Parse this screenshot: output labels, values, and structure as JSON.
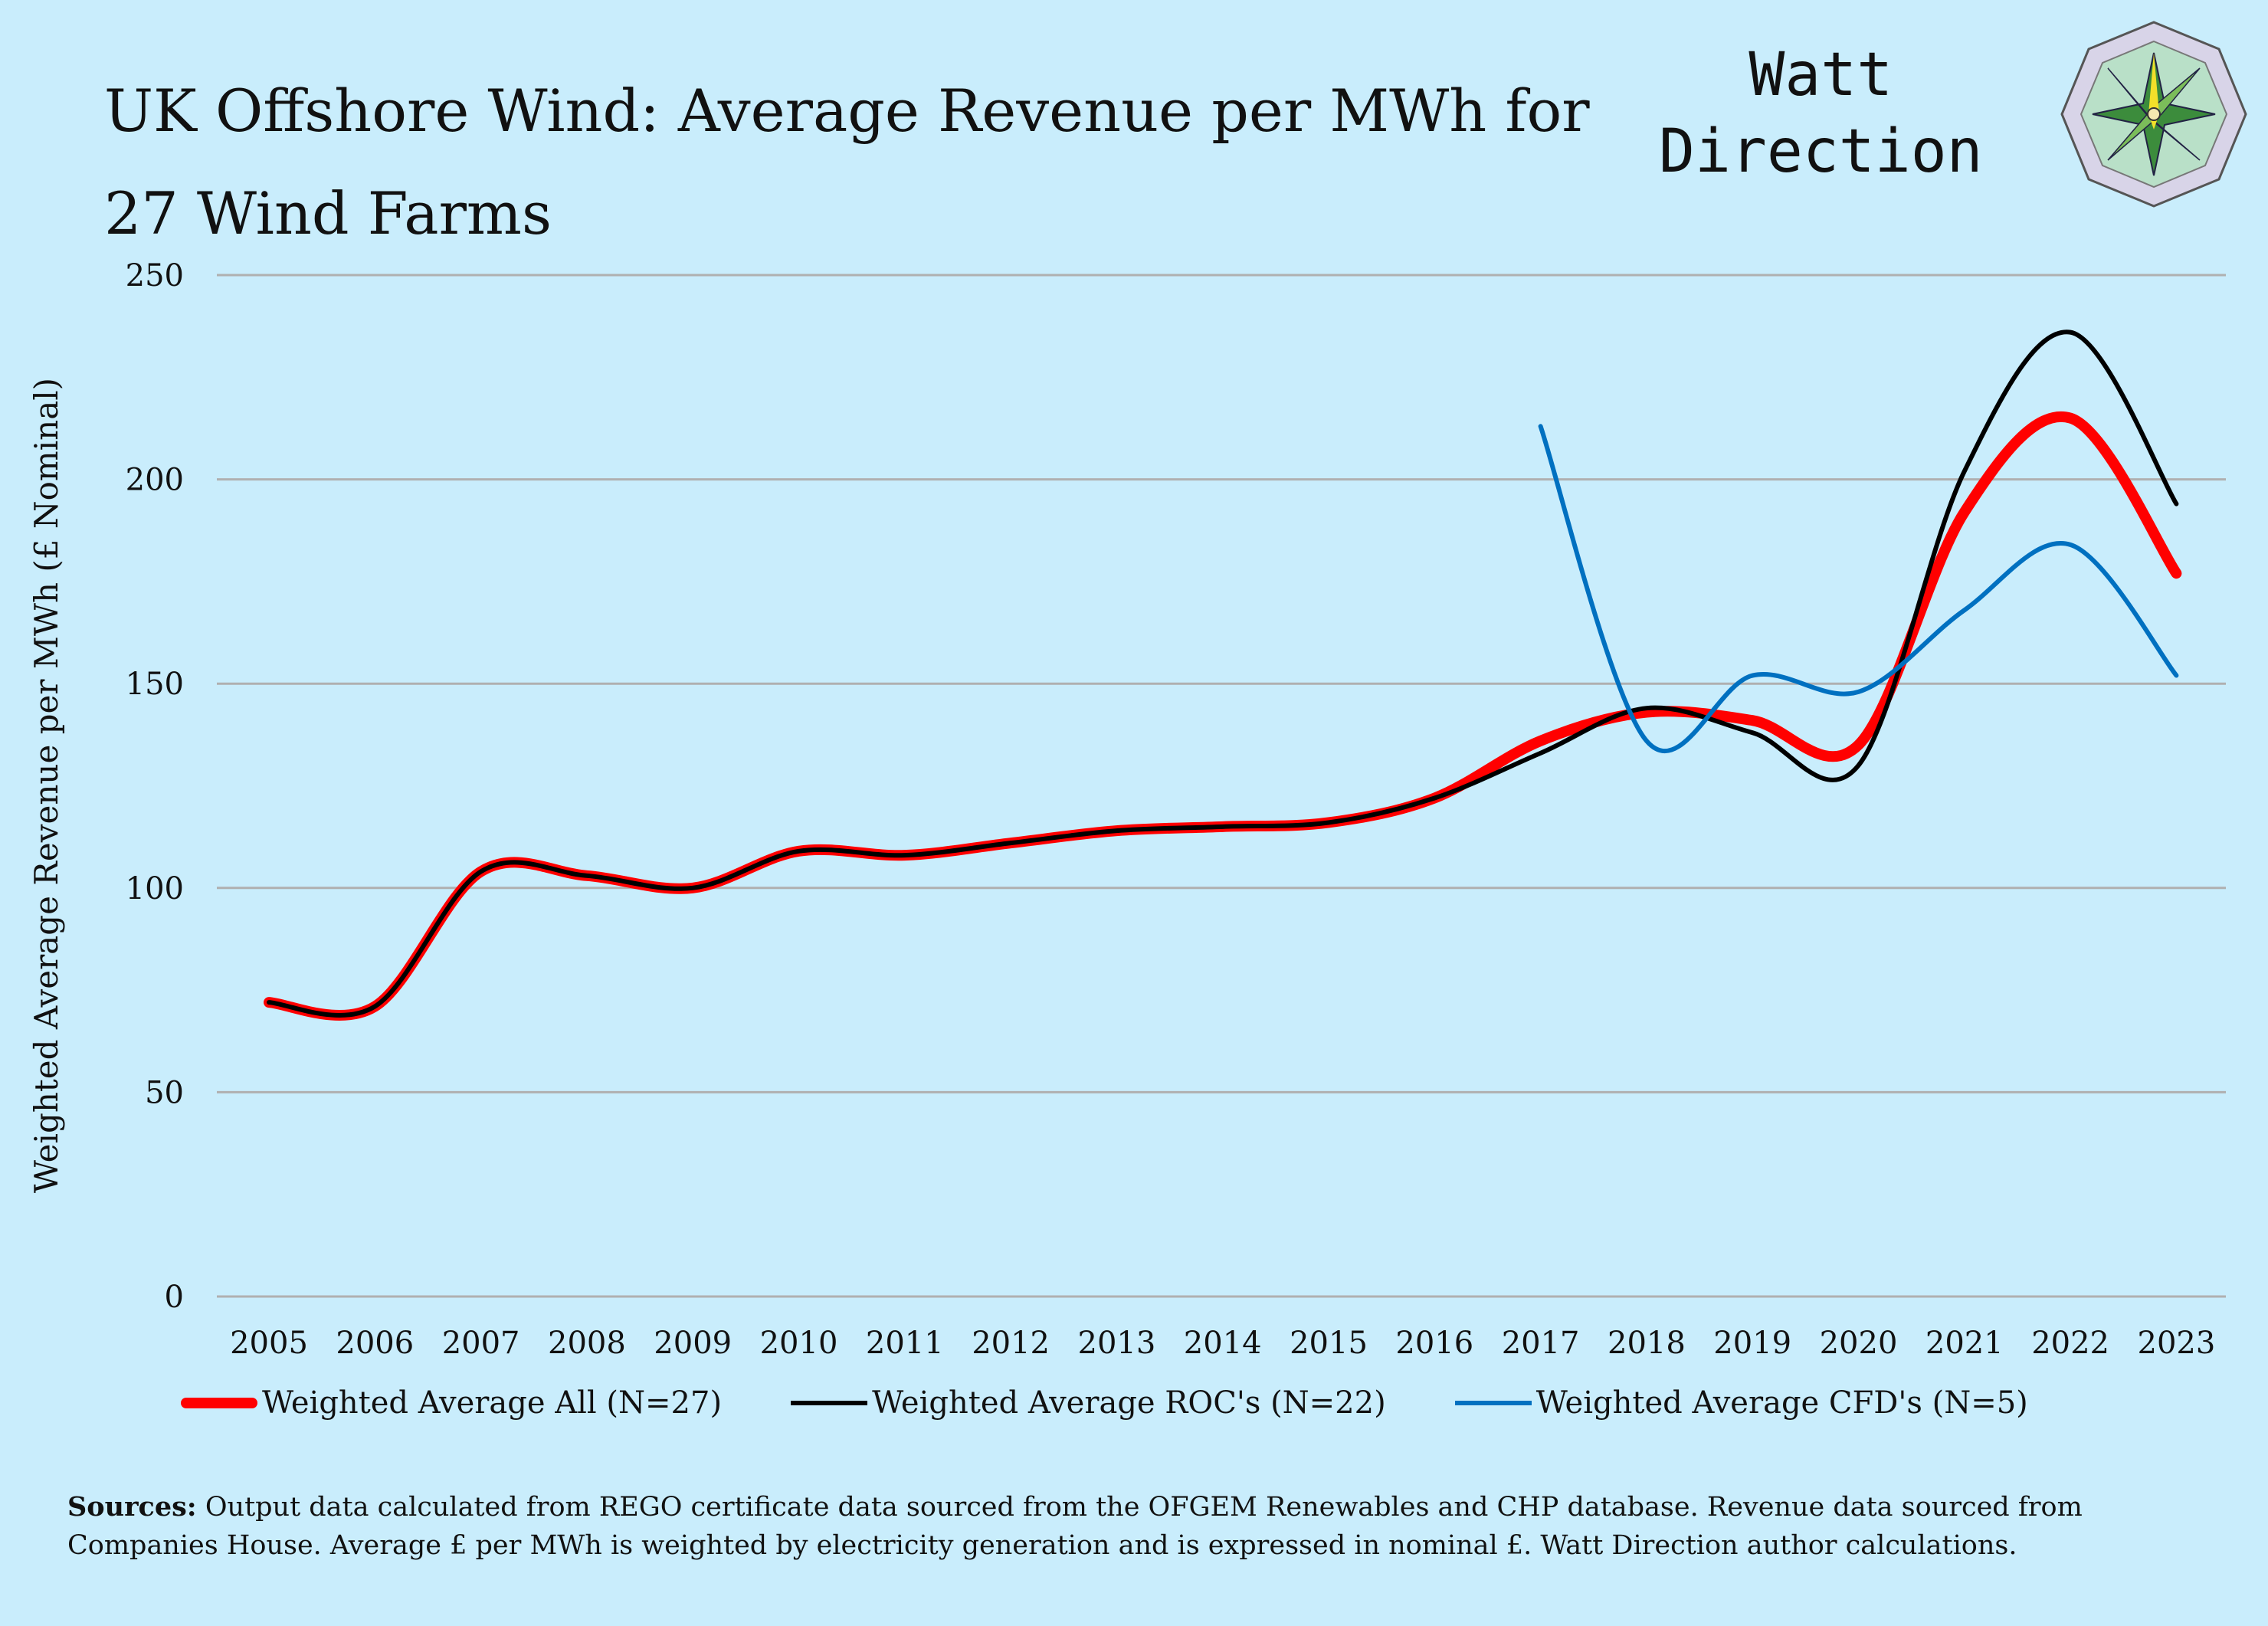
{
  "brand": {
    "line1": "Watt",
    "line2": "Direction"
  },
  "chart_data": {
    "type": "line",
    "title": "UK Offshore Wind: Average Revenue per MWh for 27 Wind Farms",
    "xlabel": "",
    "ylabel": "Weighted Average Revenue per MWh (£ Nominal)",
    "ylim": [
      0,
      250
    ],
    "yticks": [
      "0",
      "50",
      "100",
      "150",
      "200",
      "250"
    ],
    "grid": true,
    "legend_position": "bottom",
    "categories": [
      "2005",
      "2006",
      "2007",
      "2008",
      "2009",
      "2010",
      "2011",
      "2012",
      "2013",
      "2014",
      "2015",
      "2016",
      "2017",
      "2018",
      "2019",
      "2020",
      "2021",
      "2022",
      "2023"
    ],
    "series": [
      {
        "name": "Weighted Average All (N=27)",
        "color": "#ff0000",
        "values": [
          72,
          71,
          104,
          103,
          100,
          109,
          108,
          111,
          114,
          115,
          116,
          122,
          136,
          143,
          141,
          135,
          192,
          215,
          177
        ]
      },
      {
        "name": "Weighted Average ROC's (N=22)",
        "color": "#000000",
        "values": [
          72,
          71,
          104,
          103,
          100,
          109,
          108,
          111,
          114,
          115,
          116,
          122,
          133,
          144,
          138,
          130,
          202,
          236,
          194
        ]
      },
      {
        "name": "Weighted Average CFD's (N=5)",
        "color": "#0070c0",
        "values": [
          null,
          null,
          null,
          null,
          null,
          null,
          null,
          null,
          null,
          null,
          null,
          null,
          213,
          136,
          152,
          148,
          168,
          184,
          152
        ]
      }
    ]
  },
  "sources": {
    "label": "Sources:",
    "text": " Output data calculated from REGO certificate data sourced from the OFGEM Renewables and CHP database. Revenue data sourced from Companies House. Average £ per MWh  is weighted by electricity generation and is expressed in nominal £. Watt Direction author calculations."
  }
}
